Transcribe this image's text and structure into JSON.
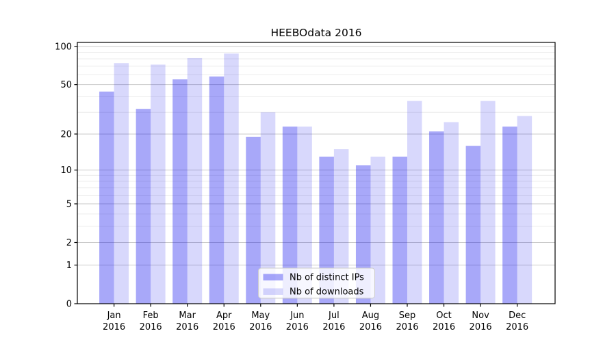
{
  "chart_data": {
    "type": "bar",
    "title": "HEEBOdata 2016",
    "categories": [
      "Jan",
      "Feb",
      "Mar",
      "Apr",
      "May",
      "Jun",
      "Jul",
      "Aug",
      "Sep",
      "Oct",
      "Nov",
      "Dec"
    ],
    "year_label": "2016",
    "series": [
      {
        "name": "Nb of distinct IPs",
        "fill": "#0505ee",
        "alpha": 0.35,
        "values": [
          44,
          32,
          55,
          58,
          19,
          23,
          13,
          11,
          13,
          21,
          16,
          23
        ]
      },
      {
        "name": "Nb of downloads",
        "fill": "#0505ee",
        "alpha": 0.155,
        "values": [
          74,
          72,
          81,
          88,
          30,
          23,
          15,
          13,
          37,
          25,
          37,
          28
        ]
      }
    ],
    "xlabel": "",
    "ylabel": "",
    "yscale": "symlog (log10(1+v))",
    "ylim": [
      0,
      108
    ],
    "y_major_ticks": [
      0,
      1,
      2,
      5,
      10,
      20,
      50,
      100
    ],
    "y_minor_gridlines": [
      3,
      4,
      6,
      7,
      8,
      9,
      30,
      40,
      60,
      70,
      80,
      90
    ],
    "grid": true,
    "legend_position": "lower center inside plot",
    "colors": {
      "bar_ips_rendered": "#a6a6fa",
      "bar_downloads_rendered": "#d9d9fc",
      "major_grid": "#c9c9c9",
      "minor_grid": "#ececec",
      "axis": "#000000",
      "text": "#000000",
      "legend_bg": "#ffffff",
      "legend_border": "#cccccc"
    }
  }
}
